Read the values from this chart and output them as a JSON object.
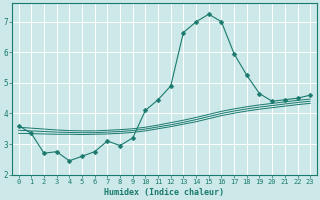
{
  "xlabel": "Humidex (Indice chaleur)",
  "background_color": "#cce8e8",
  "grid_color": "#ffffff",
  "line_color": "#1a7a6e",
  "x_values": [
    0,
    1,
    2,
    3,
    4,
    5,
    6,
    7,
    8,
    9,
    10,
    11,
    12,
    13,
    14,
    15,
    16,
    17,
    18,
    19,
    20,
    21,
    22,
    23
  ],
  "y_main": [
    3.6,
    3.35,
    2.7,
    2.75,
    2.45,
    2.6,
    2.75,
    3.1,
    2.95,
    3.2,
    4.1,
    4.45,
    4.9,
    6.65,
    7.0,
    7.25,
    7.0,
    5.95,
    5.25,
    4.65,
    4.4,
    4.45,
    4.5,
    4.6
  ],
  "y_line1": [
    3.55,
    3.52,
    3.49,
    3.46,
    3.44,
    3.43,
    3.43,
    3.45,
    3.47,
    3.5,
    3.55,
    3.62,
    3.7,
    3.78,
    3.87,
    3.97,
    4.07,
    4.15,
    4.22,
    4.28,
    4.33,
    4.38,
    4.43,
    4.47
  ],
  "y_line2": [
    3.45,
    3.43,
    3.41,
    3.39,
    3.38,
    3.37,
    3.37,
    3.39,
    3.41,
    3.44,
    3.49,
    3.56,
    3.63,
    3.71,
    3.8,
    3.9,
    4.0,
    4.08,
    4.15,
    4.21,
    4.26,
    4.31,
    4.36,
    4.4
  ],
  "y_line3": [
    3.35,
    3.34,
    3.33,
    3.32,
    3.32,
    3.31,
    3.32,
    3.33,
    3.35,
    3.38,
    3.43,
    3.5,
    3.57,
    3.65,
    3.73,
    3.83,
    3.93,
    4.01,
    4.08,
    4.14,
    4.19,
    4.24,
    4.29,
    4.33
  ],
  "ylim": [
    2.0,
    7.6
  ],
  "xlim": [
    -0.5,
    23.5
  ],
  "yticks": [
    2,
    3,
    4,
    5,
    6,
    7
  ],
  "xticks": [
    0,
    1,
    2,
    3,
    4,
    5,
    6,
    7,
    8,
    9,
    10,
    11,
    12,
    13,
    14,
    15,
    16,
    17,
    18,
    19,
    20,
    21,
    22,
    23
  ],
  "marker": "D",
  "markersize": 2.5
}
